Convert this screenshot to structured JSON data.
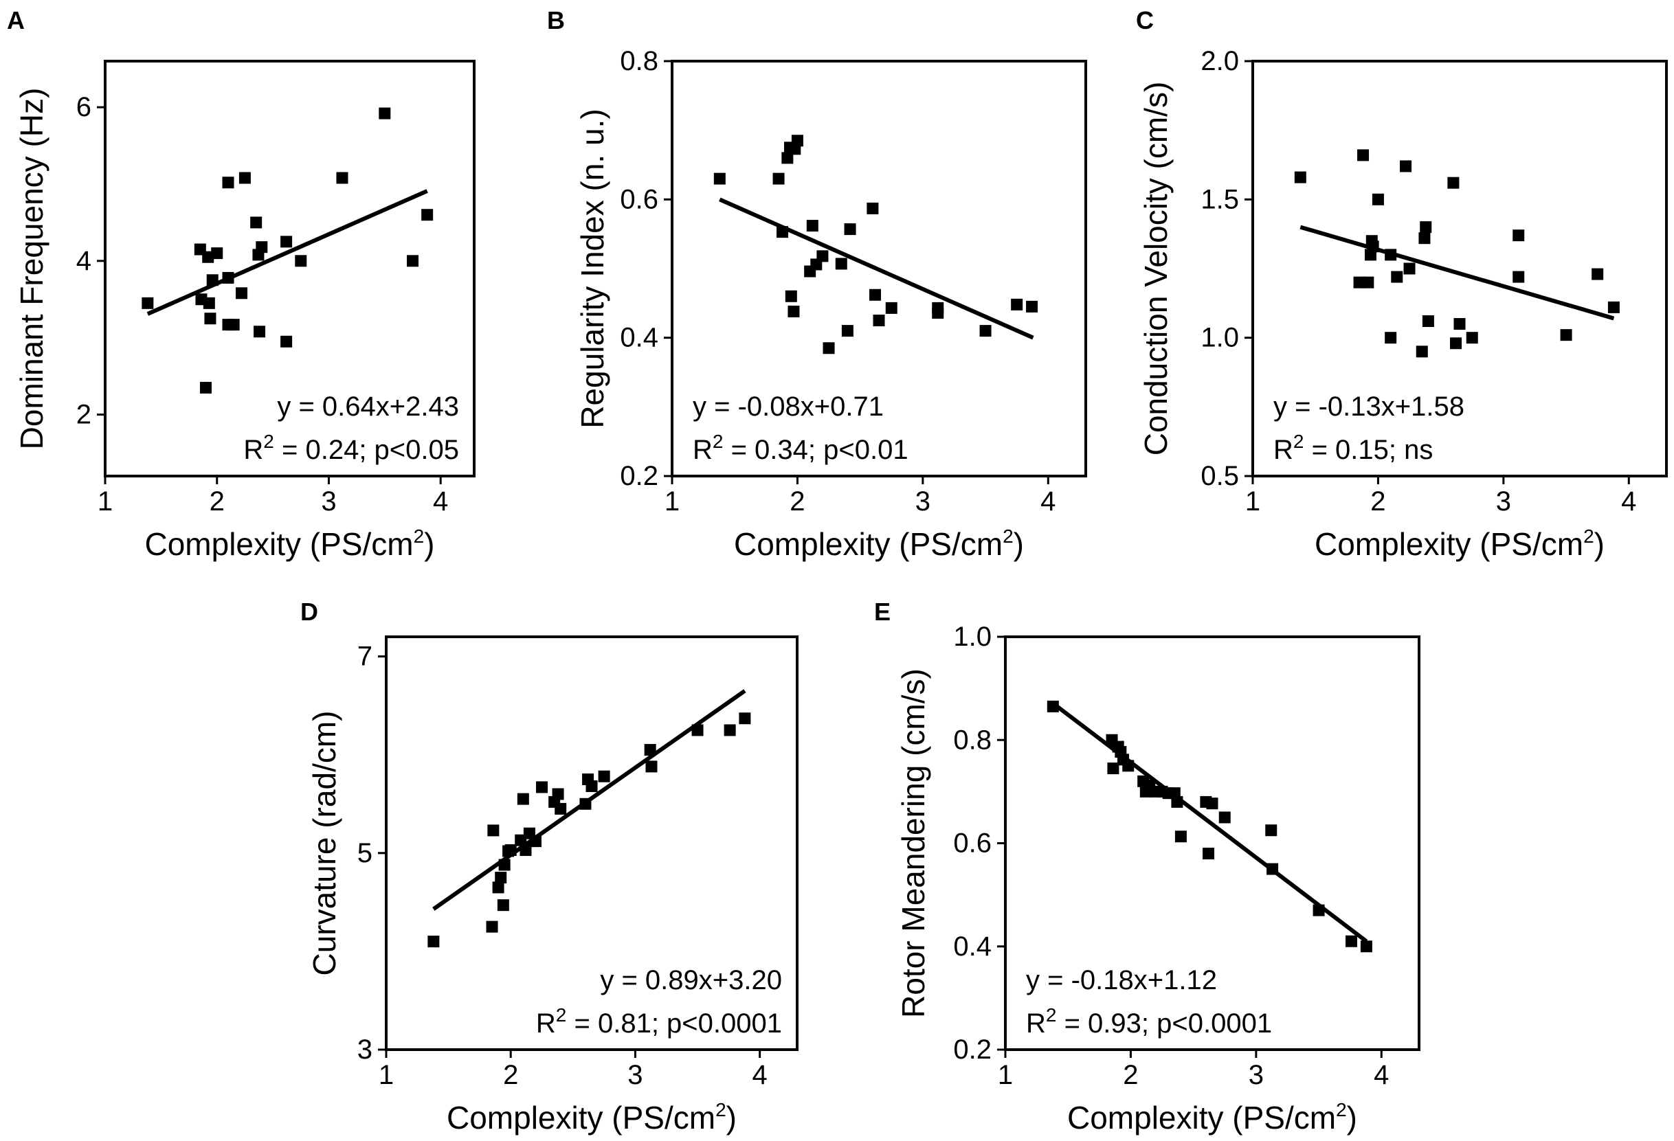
{
  "figure": {
    "chart_data": [
      {
        "panel": "A",
        "type": "scatter",
        "xlabel": "Complexity (PS/cm",
        "xlabel_sup": "2",
        "xlabel_tail": ")",
        "ylabel": "Dominant Frequency (Hz)",
        "xlim": [
          1,
          4.3
        ],
        "ylim": [
          1.2,
          6.6
        ],
        "xticks": [
          1,
          2,
          3,
          4
        ],
        "yticks": [
          2,
          4,
          6
        ],
        "points": [
          [
            1.38,
            3.45
          ],
          [
            1.85,
            4.15
          ],
          [
            1.86,
            3.5
          ],
          [
            1.9,
            2.35
          ],
          [
            1.92,
            4.05
          ],
          [
            1.93,
            3.45
          ],
          [
            1.94,
            3.25
          ],
          [
            1.96,
            3.75
          ],
          [
            2.0,
            4.1
          ],
          [
            2.1,
            5.02
          ],
          [
            2.1,
            3.78
          ],
          [
            2.1,
            3.17
          ],
          [
            2.15,
            3.17
          ],
          [
            2.22,
            3.58
          ],
          [
            2.25,
            5.08
          ],
          [
            2.35,
            4.5
          ],
          [
            2.37,
            4.08
          ],
          [
            2.38,
            3.08
          ],
          [
            2.4,
            4.18
          ],
          [
            2.62,
            4.25
          ],
          [
            2.62,
            2.95
          ],
          [
            2.75,
            4.0
          ],
          [
            3.12,
            5.08
          ],
          [
            3.5,
            5.92
          ],
          [
            3.75,
            4.0
          ],
          [
            3.88,
            4.6
          ]
        ],
        "fit_line": {
          "x": [
            1.38,
            3.88
          ],
          "y": [
            3.31,
            4.91
          ]
        },
        "eq": "y = 0.64x+2.43",
        "r2_pre": "R",
        "r2_sup": "2",
        "r2_post": " = 0.24; p<0.05"
      },
      {
        "panel": "B",
        "type": "scatter",
        "xlabel": "Complexity (PS/cm",
        "xlabel_sup": "2",
        "xlabel_tail": ")",
        "ylabel": "Regularity Index (n. u.)",
        "xlim": [
          1,
          4.3
        ],
        "ylim": [
          0.2,
          0.8
        ],
        "xticks": [
          1,
          2,
          3,
          4
        ],
        "yticks": [
          0.2,
          0.4,
          0.6,
          0.8
        ],
        "points": [
          [
            1.38,
            0.63
          ],
          [
            1.85,
            0.63
          ],
          [
            1.88,
            0.553
          ],
          [
            1.92,
            0.66
          ],
          [
            1.94,
            0.675
          ],
          [
            1.95,
            0.46
          ],
          [
            1.97,
            0.438
          ],
          [
            1.98,
            0.673
          ],
          [
            2.0,
            0.685
          ],
          [
            2.1,
            0.496
          ],
          [
            2.12,
            0.562
          ],
          [
            2.15,
            0.506
          ],
          [
            2.2,
            0.518
          ],
          [
            2.25,
            0.385
          ],
          [
            2.35,
            0.507
          ],
          [
            2.4,
            0.41
          ],
          [
            2.42,
            0.557
          ],
          [
            2.6,
            0.587
          ],
          [
            2.62,
            0.462
          ],
          [
            2.65,
            0.425
          ],
          [
            2.75,
            0.443
          ],
          [
            3.12,
            0.443
          ],
          [
            3.12,
            0.436
          ],
          [
            3.5,
            0.41
          ],
          [
            3.75,
            0.448
          ],
          [
            3.87,
            0.445
          ]
        ],
        "fit_line": {
          "x": [
            1.38,
            3.88
          ],
          "y": [
            0.6,
            0.4
          ]
        },
        "eq": "y = -0.08x+0.71",
        "r2_pre": "R",
        "r2_sup": "2",
        "r2_post": " = 0.34; p<0.01"
      },
      {
        "panel": "C",
        "type": "scatter",
        "xlabel": "Complexity (PS/cm",
        "xlabel_sup": "2",
        "xlabel_tail": ")",
        "ylabel": "Conduction Velocity (cm/s)",
        "xlim": [
          1,
          4.3
        ],
        "ylim": [
          0.5,
          2.0
        ],
        "xticks": [
          1,
          2,
          3,
          4
        ],
        "yticks": [
          0.5,
          1.0,
          1.5,
          2.0
        ],
        "yticklabels": [
          "0.5",
          "1.0",
          "1.5",
          "2.0"
        ],
        "points": [
          [
            1.38,
            1.58
          ],
          [
            1.85,
            1.2
          ],
          [
            1.88,
            1.66
          ],
          [
            1.92,
            1.2
          ],
          [
            1.94,
            1.3
          ],
          [
            1.95,
            1.35
          ],
          [
            1.96,
            1.33
          ],
          [
            2.0,
            1.5
          ],
          [
            2.1,
            1.3
          ],
          [
            2.1,
            1.0
          ],
          [
            2.15,
            1.22
          ],
          [
            2.22,
            1.62
          ],
          [
            2.25,
            1.25
          ],
          [
            2.35,
            0.95
          ],
          [
            2.37,
            1.36
          ],
          [
            2.38,
            1.4
          ],
          [
            2.4,
            1.06
          ],
          [
            2.6,
            1.56
          ],
          [
            2.62,
            0.98
          ],
          [
            2.65,
            1.05
          ],
          [
            2.75,
            1.0
          ],
          [
            3.12,
            1.22
          ],
          [
            3.12,
            1.37
          ],
          [
            3.5,
            1.01
          ],
          [
            3.75,
            1.23
          ],
          [
            3.88,
            1.11
          ]
        ],
        "fit_line": {
          "x": [
            1.38,
            3.88
          ],
          "y": [
            1.4,
            1.07
          ]
        },
        "eq": "y = -0.13x+1.58",
        "r2_pre": "R",
        "r2_sup": "2",
        "r2_post": " = 0.15; ns"
      },
      {
        "panel": "D",
        "type": "scatter",
        "xlabel": "Complexity (PS/cm",
        "xlabel_sup": "2",
        "xlabel_tail": ")",
        "ylabel": "Curvature (rad/cm)",
        "xlim": [
          1,
          4.3
        ],
        "ylim": [
          3,
          7.2
        ],
        "xticks": [
          1,
          2,
          3,
          4
        ],
        "yticks": [
          3,
          5,
          7
        ],
        "points": [
          [
            1.38,
            4.1
          ],
          [
            1.85,
            4.25
          ],
          [
            1.86,
            5.23
          ],
          [
            1.9,
            4.65
          ],
          [
            1.92,
            4.75
          ],
          [
            1.94,
            4.47
          ],
          [
            1.95,
            4.88
          ],
          [
            1.98,
            5.02
          ],
          [
            2.0,
            5.03
          ],
          [
            2.08,
            5.13
          ],
          [
            2.1,
            5.55
          ],
          [
            2.12,
            5.03
          ],
          [
            2.15,
            5.2
          ],
          [
            2.2,
            5.12
          ],
          [
            2.25,
            5.67
          ],
          [
            2.35,
            5.52
          ],
          [
            2.38,
            5.6
          ],
          [
            2.4,
            5.45
          ],
          [
            2.6,
            5.5
          ],
          [
            2.62,
            5.75
          ],
          [
            2.65,
            5.68
          ],
          [
            2.75,
            5.78
          ],
          [
            3.12,
            6.05
          ],
          [
            3.13,
            5.88
          ],
          [
            3.5,
            6.25
          ],
          [
            3.76,
            6.25
          ],
          [
            3.88,
            6.37
          ]
        ],
        "fit_line": {
          "x": [
            1.38,
            3.88
          ],
          "y": [
            4.43,
            6.65
          ]
        },
        "eq": "y = 0.89x+3.20",
        "r2_pre": "R",
        "r2_sup": "2",
        "r2_post": " = 0.81; p<0.0001"
      },
      {
        "panel": "E",
        "type": "scatter",
        "xlabel": "Complexity (PS/cm",
        "xlabel_sup": "2",
        "xlabel_tail": ")",
        "ylabel": "Rotor Meandering (cm/s)",
        "xlim": [
          1,
          4.3
        ],
        "ylim": [
          0.2,
          1.0
        ],
        "xticks": [
          1,
          2,
          3,
          4
        ],
        "yticks": [
          0.2,
          0.4,
          0.6,
          0.8,
          1.0
        ],
        "yticklabels": [
          "0.2",
          "0.4",
          "0.6",
          "0.8",
          "1.0"
        ],
        "points": [
          [
            1.38,
            0.865
          ],
          [
            1.85,
            0.8
          ],
          [
            1.86,
            0.745
          ],
          [
            1.9,
            0.787
          ],
          [
            1.92,
            0.777
          ],
          [
            1.94,
            0.762
          ],
          [
            1.98,
            0.75
          ],
          [
            2.1,
            0.72
          ],
          [
            2.12,
            0.7
          ],
          [
            2.15,
            0.712
          ],
          [
            2.2,
            0.7
          ],
          [
            2.25,
            0.7
          ],
          [
            2.3,
            0.697
          ],
          [
            2.35,
            0.697
          ],
          [
            2.37,
            0.68
          ],
          [
            2.4,
            0.613
          ],
          [
            2.6,
            0.68
          ],
          [
            2.62,
            0.58
          ],
          [
            2.65,
            0.677
          ],
          [
            2.75,
            0.65
          ],
          [
            3.12,
            0.625
          ],
          [
            3.13,
            0.55
          ],
          [
            3.5,
            0.47
          ],
          [
            3.76,
            0.41
          ],
          [
            3.88,
            0.4
          ]
        ],
        "fit_line": {
          "x": [
            1.38,
            3.88
          ],
          "y": [
            0.871,
            0.41
          ]
        },
        "eq": "y = -0.18x+1.12",
        "r2_pre": "R",
        "r2_sup": "2",
        "r2_post": " = 0.93; p<0.0001"
      }
    ]
  }
}
